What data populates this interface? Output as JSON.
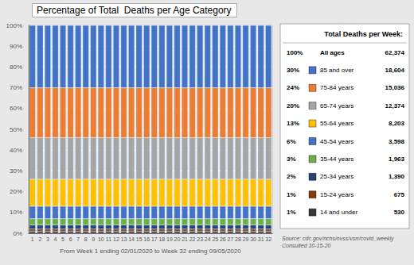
{
  "chart_data": {
    "type": "bar",
    "title": "Percentage of Total  Deaths per Age Category",
    "x_label": "From Week 1 ending 02/01/2020 to Week 32 ending 09/05/2020",
    "categories": [
      1,
      2,
      3,
      4,
      5,
      6,
      7,
      8,
      9,
      10,
      11,
      12,
      13,
      14,
      15,
      16,
      17,
      18,
      19,
      20,
      21,
      22,
      23,
      24,
      25,
      26,
      27,
      28,
      29,
      30,
      31,
      32
    ],
    "stacked": true,
    "grid": true,
    "ylim": [
      0,
      100
    ],
    "yticks": [
      {
        "value": 0,
        "label": "0%"
      },
      {
        "value": 10,
        "label": "10%"
      },
      {
        "value": 20,
        "label": "20%"
      },
      {
        "value": 30,
        "label": "30%"
      },
      {
        "value": 40,
        "label": "40%"
      },
      {
        "value": 50,
        "label": "50%"
      },
      {
        "value": 60,
        "label": "60%"
      },
      {
        "value": 70,
        "label": "70%"
      },
      {
        "value": 80,
        "label": "80%"
      },
      {
        "value": 90,
        "label": "90%"
      },
      {
        "value": 100,
        "label": "100%"
      }
    ],
    "series": [
      {
        "name": "14 and under",
        "color": "#3B3838",
        "values": [
          1,
          1,
          1,
          1,
          1,
          1,
          1,
          1,
          1,
          1,
          1,
          1,
          1,
          1,
          1,
          1,
          1,
          1,
          1,
          1,
          1,
          1,
          1,
          1,
          1,
          1,
          1,
          1,
          1,
          1,
          1,
          1
        ]
      },
      {
        "name": "15-24 years",
        "color": "#843C0C",
        "values": [
          1,
          1,
          1,
          1,
          1,
          1,
          1,
          1,
          1,
          1,
          1,
          1,
          1,
          1,
          1,
          1,
          1,
          1,
          1,
          1,
          1,
          1,
          1,
          1,
          1,
          1,
          1,
          1,
          1,
          1,
          1,
          1
        ]
      },
      {
        "name": "25-34 years",
        "color": "#264478",
        "values": [
          2,
          2,
          2,
          2,
          2,
          2,
          2,
          2,
          2,
          2,
          2,
          2,
          2,
          2,
          2,
          2,
          2,
          2,
          2,
          2,
          2,
          2,
          2,
          2,
          2,
          2,
          2,
          2,
          2,
          2,
          2,
          2
        ]
      },
      {
        "name": "35-44 years",
        "color": "#70AD47",
        "values": [
          3,
          3,
          3,
          3,
          3,
          3,
          3,
          3,
          3,
          3,
          3,
          3,
          3,
          3,
          3,
          3,
          3,
          3,
          3,
          3,
          3,
          3,
          3,
          3,
          3,
          3,
          3,
          3,
          3,
          3,
          3,
          3
        ]
      },
      {
        "name": "45-54 years",
        "color": "#4472C4",
        "values": [
          6,
          6,
          6,
          6,
          6,
          6,
          6,
          6,
          6,
          6,
          6,
          6,
          6,
          6,
          6,
          6,
          6,
          6,
          6,
          6,
          6,
          6,
          6,
          6,
          6,
          6,
          6,
          6,
          6,
          6,
          6,
          6
        ]
      },
      {
        "name": "55-64 years",
        "color": "#FFC000",
        "values": [
          13,
          13,
          13,
          13,
          13,
          13,
          13,
          13,
          13,
          13,
          13,
          13,
          13,
          13,
          13,
          13,
          13,
          13,
          13,
          13,
          13,
          13,
          13,
          13,
          13,
          13,
          13,
          13,
          13,
          13,
          13,
          13
        ]
      },
      {
        "name": "65-74 years",
        "color": "#A5A5A5",
        "values": [
          20,
          20,
          20,
          20,
          20,
          20,
          20,
          20,
          20,
          20,
          20,
          20,
          20,
          20,
          20,
          20,
          20,
          20,
          20,
          20,
          20,
          20,
          20,
          20,
          20,
          20,
          20,
          20,
          20,
          20,
          20,
          20
        ]
      },
      {
        "name": "75-84 years",
        "color": "#ED7D31",
        "values": [
          24,
          24,
          24,
          24,
          24,
          24,
          24,
          24,
          24,
          24,
          24,
          24,
          24,
          24,
          24,
          24,
          24,
          24,
          24,
          24,
          24,
          24,
          24,
          24,
          24,
          24,
          24,
          24,
          24,
          24,
          24,
          24
        ]
      },
      {
        "name": "85 and over",
        "color": "#4472C4",
        "values": [
          30,
          30,
          30,
          30,
          30,
          30,
          30,
          30,
          30,
          30,
          30,
          30,
          30,
          30,
          30,
          30,
          30,
          30,
          30,
          30,
          30,
          30,
          30,
          30,
          30,
          30,
          30,
          30,
          30,
          30,
          30,
          30
        ]
      }
    ],
    "legend_table": {
      "header": "Total Deaths per Week:",
      "rows": [
        {
          "pct": "100%",
          "label": "All ages",
          "value": "62,374"
        },
        {
          "pct": "30%",
          "label": "85 and over",
          "value": "18,604"
        },
        {
          "pct": "24%",
          "label": "75-84 years",
          "value": "15,036"
        },
        {
          "pct": "20%",
          "label": "65-74 years",
          "value": "12,374"
        },
        {
          "pct": "13%",
          "label": "55-64 years",
          "value": "8,203"
        },
        {
          "pct": "6%",
          "label": "45-54 years",
          "value": "3,598"
        },
        {
          "pct": "3%",
          "label": "35-44 years",
          "value": "1,963"
        },
        {
          "pct": "2%",
          "label": "25-34 years",
          "value": "1,390"
        },
        {
          "pct": "1%",
          "label": "15-24 years",
          "value": "675"
        },
        {
          "pct": "1%",
          "label": "14 and under",
          "value": "530"
        }
      ]
    },
    "annotations": [
      "Source: cdc.gov/nchs/nvss/vsrr/covid_weekly\nConsulted 10-15-20"
    ]
  }
}
